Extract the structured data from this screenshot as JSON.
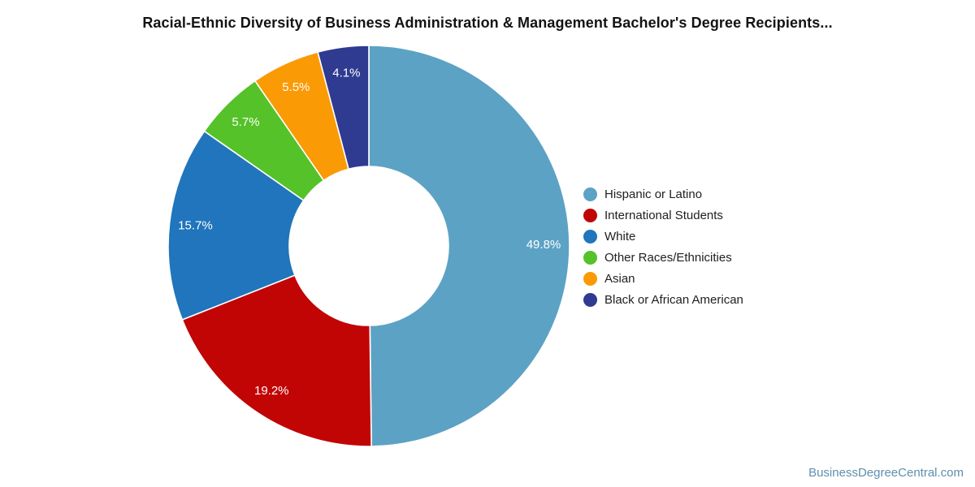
{
  "page": {
    "watermark": "BusinessDegreeCentral.com"
  },
  "chart_data": {
    "type": "pie",
    "donut": true,
    "title": "Racial-Ethnic Diversity of Business Administration & Management Bachelor's Degree Recipients...",
    "categories": [
      "Hispanic or Latino",
      "International Students",
      "White",
      "Other Races/Ethnicities",
      "Asian",
      "Black or African American"
    ],
    "values": [
      49.8,
      19.2,
      15.7,
      5.7,
      5.5,
      4.1
    ],
    "labels": [
      "49.8%",
      "19.2%",
      "15.7%",
      "5.7%",
      "5.5%",
      "4.1%"
    ],
    "colors": [
      "#5CA2C4",
      "#C10505",
      "#2075BC",
      "#54C228",
      "#FA9A05",
      "#2F3B90"
    ],
    "label_color": "#ffffff",
    "start_angle_deg": 0,
    "direction": "clockwise",
    "legend_position": "right",
    "units": "%"
  }
}
